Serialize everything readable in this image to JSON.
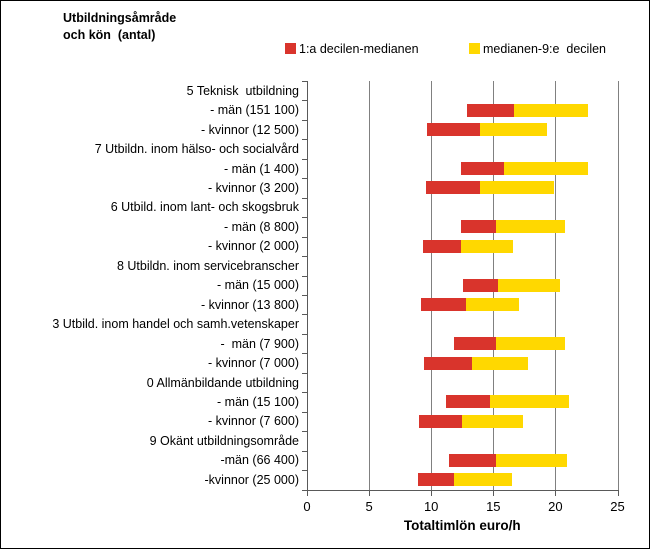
{
  "header": {
    "title": "Utbildningsåmråde\noch kön  (antal)"
  },
  "legend": [
    {
      "name": "lower",
      "label": "1:a decilen-medianen",
      "color": "#d9342c"
    },
    {
      "name": "upper",
      "label": "medianen-9:e  decilen",
      "color": "#ffd800"
    }
  ],
  "chart_data": {
    "type": "bar",
    "subtype": "horizontal-floating-range",
    "title": "Utbildningsåmråde och kön (antal)",
    "xlabel": "Totaltimlön euro/h",
    "ylabel": "",
    "xlim": [
      0,
      25
    ],
    "xticks": [
      0,
      5,
      10,
      15,
      20,
      25
    ],
    "grid": "vertical-only",
    "legend_position": "top",
    "colors": {
      "lower_segment": "#d9342c",
      "upper_segment": "#ffd800",
      "gridline": "#808080",
      "axis": "#595959"
    },
    "series_note": "d1 = 1:a decilen, med = medianen, d9 = 9:e decilen (euro/h)",
    "rows": [
      {
        "label": "5 Teknisk  utbildning",
        "group": true
      },
      {
        "label": "- män (151 100)",
        "d1": 12.9,
        "med": 16.7,
        "d9": 22.6
      },
      {
        "label": "- kvinnor (12 500)",
        "d1": 9.7,
        "med": 13.9,
        "d9": 19.3
      },
      {
        "label": "7 Utbildn. inom hälso- och socialvård",
        "group": true
      },
      {
        "label": "- män (1 400)",
        "d1": 12.4,
        "med": 15.9,
        "d9": 22.6
      },
      {
        "label": "- kvinnor (3 200)",
        "d1": 9.6,
        "med": 13.9,
        "d9": 19.9
      },
      {
        "label": "6 Utbild. inom lant- och skogsbruk",
        "group": true
      },
      {
        "label": "- män (8 800)",
        "d1": 12.4,
        "med": 15.2,
        "d9": 20.8
      },
      {
        "label": "- kvinnor (2 000)",
        "d1": 9.3,
        "med": 12.4,
        "d9": 16.6
      },
      {
        "label": "8 Utbildn. inom servicebranscher",
        "group": true
      },
      {
        "label": "- män (15 000)",
        "d1": 12.6,
        "med": 15.4,
        "d9": 20.4
      },
      {
        "label": "- kvinnor (13 800)",
        "d1": 9.2,
        "med": 12.8,
        "d9": 17.1
      },
      {
        "label": "3 Utbild. inom handel och samh.vetenskaper",
        "group": true
      },
      {
        "label": "-  män (7 900)",
        "d1": 11.8,
        "med": 15.2,
        "d9": 20.8
      },
      {
        "label": "- kvinnor (7 000)",
        "d1": 9.4,
        "med": 13.3,
        "d9": 17.8
      },
      {
        "label": "0 Allmänbildande utbildning",
        "group": true
      },
      {
        "label": "- män (15 100)",
        "d1": 11.2,
        "med": 14.7,
        "d9": 21.1
      },
      {
        "label": "- kvinnor (7 600)",
        "d1": 9.0,
        "med": 12.5,
        "d9": 17.4
      },
      {
        "label": "9 Okänt utbildningsområde",
        "group": true
      },
      {
        "label": "-män (66 400)",
        "d1": 11.4,
        "med": 15.2,
        "d9": 20.9
      },
      {
        "label": "-kvinnor (25 000)",
        "d1": 8.9,
        "med": 11.8,
        "d9": 16.5
      }
    ]
  }
}
